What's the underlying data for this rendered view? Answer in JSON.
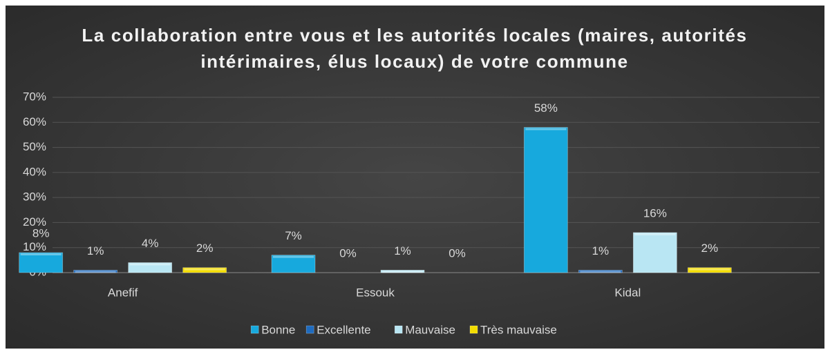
{
  "chart_data": {
    "type": "bar",
    "title": "La collaboration entre vous et les autorités locales (maires, autorités intérimaires, élus locaux) de votre commune",
    "categories": [
      "Anefif",
      "Essouk",
      "Kidal"
    ],
    "series": [
      {
        "name": "Bonne",
        "color": "#17a9dd",
        "values": [
          8,
          7,
          58
        ],
        "value_labels": [
          "8%",
          "7%",
          "58%"
        ]
      },
      {
        "name": "Excellente",
        "color": "#1e6bbf",
        "values": [
          1,
          0,
          1
        ],
        "value_labels": [
          "1%",
          "0%",
          "1%"
        ]
      },
      {
        "name": "Mauvaise",
        "color": "#b9e6f3",
        "values": [
          4,
          1,
          16
        ],
        "value_labels": [
          "4%",
          "1%",
          "16%"
        ]
      },
      {
        "name": "Très mauvaise",
        "color": "#f2dc00",
        "values": [
          2,
          0,
          2
        ],
        "value_labels": [
          "2%",
          "0%",
          "2%"
        ]
      }
    ],
    "ylim": [
      0,
      70
    ],
    "yticks": [
      {
        "value": 0,
        "label": "0%"
      },
      {
        "value": 10,
        "label": "10%"
      },
      {
        "value": 20,
        "label": "20%"
      },
      {
        "value": 30,
        "label": "30%"
      },
      {
        "value": 40,
        "label": "40%"
      },
      {
        "value": 50,
        "label": "50%"
      },
      {
        "value": 60,
        "label": "60%"
      },
      {
        "value": 70,
        "label": "70%"
      }
    ],
    "grid": true,
    "legend": "bottom"
  }
}
